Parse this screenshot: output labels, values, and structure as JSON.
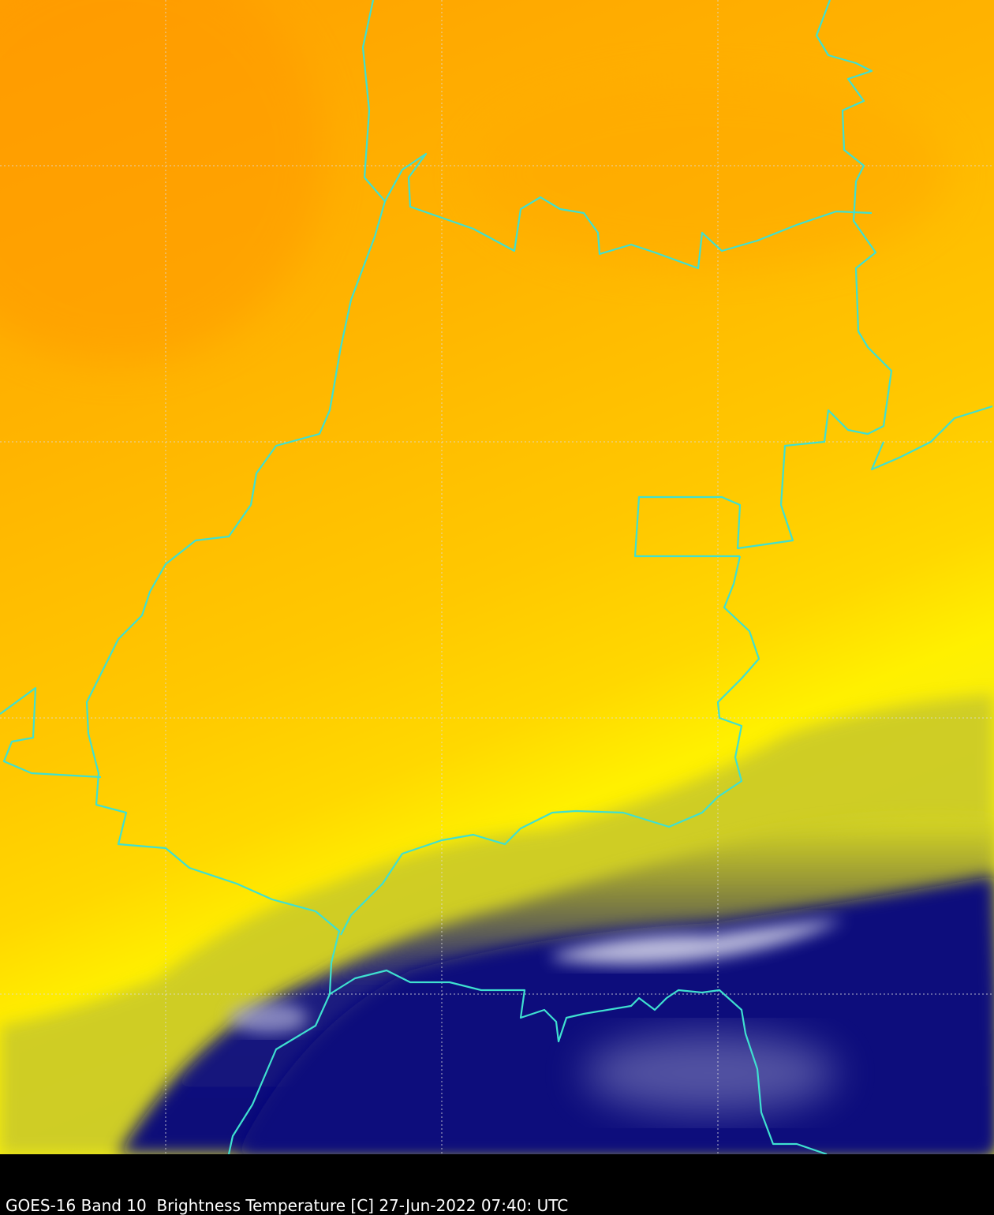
{
  "caption": "GOES-16 Band 10  Brightness Temperature [C] 27-Jun-2022 07:40: UTC"
}
